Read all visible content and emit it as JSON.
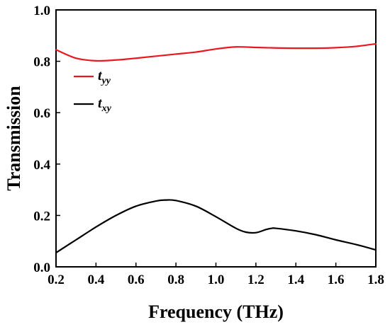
{
  "chart_data": {
    "type": "line",
    "title": "",
    "xlabel": "Frequency (THz)",
    "ylabel": "Transmission",
    "xlim": [
      0.2,
      1.8
    ],
    "ylim": [
      0.0,
      1.0
    ],
    "x_ticks": [
      "0.2",
      "0.4",
      "0.6",
      "0.8",
      "1.0",
      "1.2",
      "1.4",
      "1.6",
      "1.8"
    ],
    "y_ticks": [
      "0.0",
      "0.2",
      "0.4",
      "0.6",
      "0.8",
      "1.0"
    ],
    "grid": false,
    "legend_position": "upper-left",
    "series": [
      {
        "name": "t",
        "subscript": "yy",
        "color": "#e8191f",
        "x": [
          0.2,
          0.3,
          0.4,
          0.5,
          0.6,
          0.7,
          0.8,
          0.9,
          1.0,
          1.1,
          1.2,
          1.3,
          1.4,
          1.5,
          1.6,
          1.7,
          1.8
        ],
        "y": [
          0.845,
          0.812,
          0.802,
          0.805,
          0.812,
          0.82,
          0.828,
          0.836,
          0.848,
          0.856,
          0.854,
          0.852,
          0.851,
          0.851,
          0.853,
          0.858,
          0.868
        ]
      },
      {
        "name": "t",
        "subscript": "xy",
        "color": "#000000",
        "x": [
          0.2,
          0.3,
          0.4,
          0.5,
          0.6,
          0.7,
          0.75,
          0.8,
          0.9,
          1.0,
          1.1,
          1.15,
          1.2,
          1.25,
          1.28,
          1.3,
          1.4,
          1.5,
          1.6,
          1.7,
          1.8
        ],
        "y": [
          0.055,
          0.105,
          0.155,
          0.2,
          0.236,
          0.256,
          0.26,
          0.258,
          0.236,
          0.195,
          0.15,
          0.135,
          0.133,
          0.145,
          0.15,
          0.15,
          0.14,
          0.125,
          0.105,
          0.087,
          0.066
        ]
      }
    ]
  }
}
